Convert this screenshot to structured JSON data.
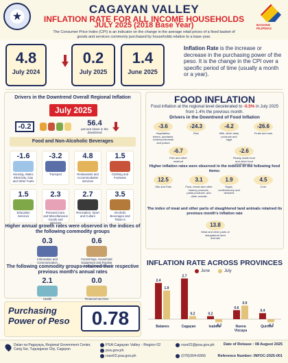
{
  "header": {
    "region": "CAGAYAN VALLEY",
    "title": "INFLATION RATE FOR ALL INCOME HOUSEHOLDS",
    "period": "JULY 2025 (2018 Base Year)",
    "description": "The Consumer Price Index (CPI) is an indicator on the change in the average retail prices of a fixed basket of goods and services commonly purchased by households relative to a base year.",
    "bp_text": "BAGONG PILIPINAS"
  },
  "kpis": [
    {
      "value": "4.8",
      "label": "July 2024"
    },
    {
      "value": "0.2",
      "label": "July 2025"
    },
    {
      "value": "1.4",
      "label": "June 2025"
    }
  ],
  "definition": {
    "term": "Inflation Rate",
    "text": " is the increase or decrease in the purchasing power of the peso. It is the change in the CPI over a specific period of time (usually a month or a year)."
  },
  "drivers": {
    "title": "Drivers in the Downtrend Overall Regional Inflation",
    "month": "July 2025",
    "food_value": "-0.2",
    "share_value": "56.4",
    "share_label": "percent share in the downtrend",
    "food_label": "Food and Non-Alcoholic Beverages",
    "row1": [
      {
        "value": "-1.6",
        "label": "Housing, Water, Electricity, Gas and Other Fuels"
      },
      {
        "value": "-3.2",
        "label": "Transport"
      },
      {
        "value": "4.8",
        "label": "Restaurants and Accommodation Services"
      },
      {
        "value": "1.5",
        "label": "Clothing and Footwear"
      }
    ],
    "row2": [
      {
        "value": "1.5",
        "label": "Education Services"
      },
      {
        "value": "2.3",
        "label": "Personal Care, and Miscellaneous Goods and Services"
      },
      {
        "value": "2.7",
        "label": "Recreation, Sport and Culture"
      },
      {
        "value": "3.5",
        "label": "Alcoholic Beverages and Tobacco"
      }
    ],
    "higher_title": "Higher annual growth rates were observed in the indices of the following commodity groups",
    "higher": [
      {
        "value": "0.3",
        "label": "Information and Communication"
      },
      {
        "value": "0.6",
        "label": "Furnishings, Household Equipment and Routine Household Maintenance"
      }
    ],
    "retained_title": "The following commodity groups retained their respective previous month's annual rates",
    "retained": [
      {
        "value": "2.1",
        "label": "Health"
      },
      {
        "value": "0.0",
        "label": "Financial Services"
      }
    ]
  },
  "purchasing_power": {
    "label": "Purchasing Power of Peso",
    "value": "0.78"
  },
  "food": {
    "title": "FOOD INFLATION",
    "subtitle_pre": "Food inflation at the regional level decelerated to ",
    "subtitle_value": "-0.5%",
    "subtitle_post": " in July 2025 from 1.4% the previous month.",
    "drivers_title": "Drivers in the Downtrend of Food Inflation",
    "drivers": [
      {
        "value": "-3.6",
        "label": "Vegetables, tubers, plantains, cooking bananas and pulses"
      },
      {
        "value": "-24.3",
        "label": "Rice"
      },
      {
        "value": "-4.2",
        "label": "Milk, other dairy products and eggs"
      },
      {
        "value": "-26.6",
        "label": "Fruits and nuts"
      },
      {
        "value": "-6.7",
        "label": "Fish and other seafood"
      },
      {
        "value": "-2.6",
        "label": "Ready-made food and other food products n.e.c."
      }
    ],
    "higher_title": "Higher inflation rates were observed in the indices of the following food items:",
    "higher": [
      {
        "value": "12.5",
        "label": "Oils and Fats"
      },
      {
        "value": "3.1",
        "label": "Flour, bread and other bakery products, pasta products, and other cereals"
      },
      {
        "value": "1.9",
        "label": "Sugar, confectionery and desserts"
      },
      {
        "value": "4.5",
        "label": "Corn"
      }
    ],
    "meat_title": "The index of meat and other parts of slaughtered land animals retained its previous month's inflation rate",
    "meat": {
      "value": "13.8",
      "label": "Meat and other parts of slaughtered land animals"
    }
  },
  "chart_data": {
    "type": "bar",
    "title": "INFLATION RATE ACROSS PROVINCES",
    "categories": [
      "Batanes",
      "Cagayan",
      "Isabela",
      "Nueva Vizcaya",
      "Quirino"
    ],
    "series": [
      {
        "name": "June",
        "values": [
          2.4,
          2.7,
          0.2,
          0.6,
          0.4
        ],
        "color": "#9b1c20"
      },
      {
        "name": "July",
        "values": [
          1.9,
          0.2,
          -0.2,
          0.9,
          -0.2
        ],
        "color": "#e3c27a"
      }
    ],
    "legend": "top"
  },
  "footer": {
    "address": "Dalan na Pagayaya, Regional Government Center, Carig Sur, Tuguegarao City, Cagayan",
    "fb": "PSA Cagayan Valley - Region 02",
    "web1": "psa.gov.ph",
    "web2": "rsso02.psa.gov.ph",
    "email": "rsso02@psa.gov.ph",
    "phone": "(078)304-8366",
    "release": "Date of Release : 08 August 2025",
    "ref": "Reference Number: INFOC-2025-001"
  }
}
